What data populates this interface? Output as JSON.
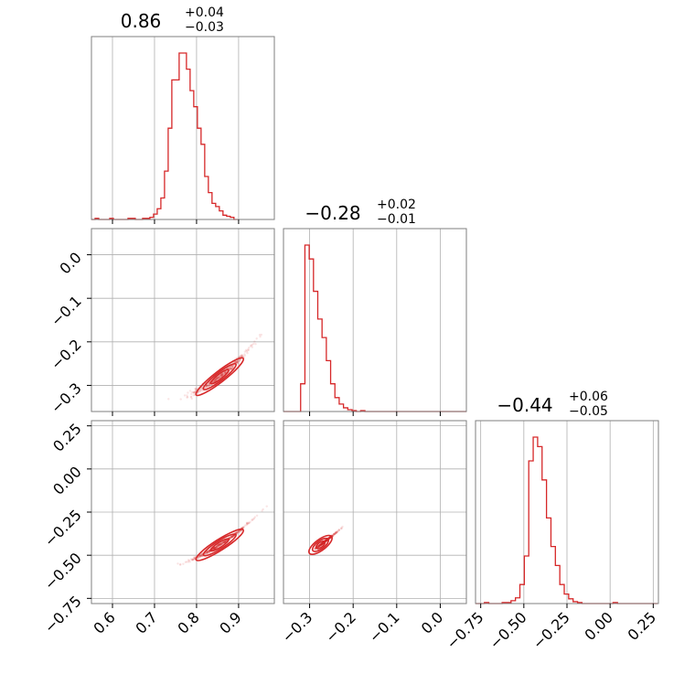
{
  "chart_data": {
    "type": "corner",
    "color": "#d62728",
    "grid": true,
    "parameters": [
      {
        "title_value": "0.86",
        "title_plus": "+0.04",
        "title_minus": "−0.03",
        "range": [
          0.55,
          0.985
        ],
        "ticks": [
          0.6,
          0.7,
          0.8,
          0.9
        ],
        "tick_labels": [
          "0.6",
          "0.7",
          "0.8",
          "0.9"
        ]
      },
      {
        "title_value": "−0.28",
        "title_plus": "+0.02",
        "title_minus": "−0.01",
        "range": [
          -0.36,
          0.06
        ],
        "ticks": [
          -0.3,
          -0.2,
          -0.1,
          0.0
        ],
        "tick_labels": [
          "−0.3",
          "−0.2",
          "−0.1",
          "0.0"
        ]
      },
      {
        "title_value": "−0.44",
        "title_plus": "+0.06",
        "title_minus": "−0.05",
        "range": [
          -0.78,
          0.28
        ],
        "ticks": [
          -0.75,
          -0.5,
          -0.25,
          0.0,
          0.25
        ],
        "tick_labels": [
          "−0.75",
          "−0.50",
          "−0.25",
          "0.00",
          "0.25"
        ]
      }
    ],
    "histograms": [
      {
        "bin_start": 0.55,
        "bin_width": 0.00869,
        "counts": [
          0,
          1,
          0,
          0,
          0,
          1,
          0,
          0,
          0,
          0,
          1,
          1,
          0,
          0,
          1,
          1,
          2,
          5,
          10,
          20,
          45,
          85,
          130,
          130,
          155,
          155,
          140,
          120,
          105,
          85,
          70,
          40,
          25,
          15,
          12,
          8,
          4,
          3,
          2,
          0
        ]
      },
      {
        "bin_start": -0.36,
        "bin_width": 0.00984,
        "counts": [
          0,
          0,
          0,
          0,
          30,
          180,
          165,
          130,
          100,
          80,
          55,
          30,
          15,
          8,
          4,
          2,
          1,
          0,
          1,
          0,
          0,
          0,
          0,
          0,
          0,
          0,
          0,
          0,
          0,
          0,
          0,
          0,
          0,
          0,
          0,
          0,
          0,
          0,
          0,
          0,
          0,
          0,
          0
        ]
      },
      {
        "bin_start": -0.78,
        "bin_width": 0.02571,
        "counts": [
          0,
          0,
          1,
          0,
          0,
          0,
          1,
          1,
          3,
          6,
          20,
          50,
          150,
          175,
          165,
          130,
          90,
          60,
          40,
          20,
          10,
          5,
          2,
          1,
          0,
          0,
          0,
          0,
          0,
          0,
          0,
          1,
          0,
          0,
          0,
          0,
          0,
          0,
          0,
          0,
          0
        ]
      }
    ],
    "pairs": [
      {
        "x_param": 0,
        "y_param": 1,
        "center": [
          0.855,
          -0.28
        ]
      },
      {
        "x_param": 0,
        "y_param": 2,
        "center": [
          0.855,
          -0.44
        ]
      },
      {
        "x_param": 1,
        "y_param": 2,
        "center": [
          -0.275,
          -0.44
        ]
      }
    ]
  }
}
